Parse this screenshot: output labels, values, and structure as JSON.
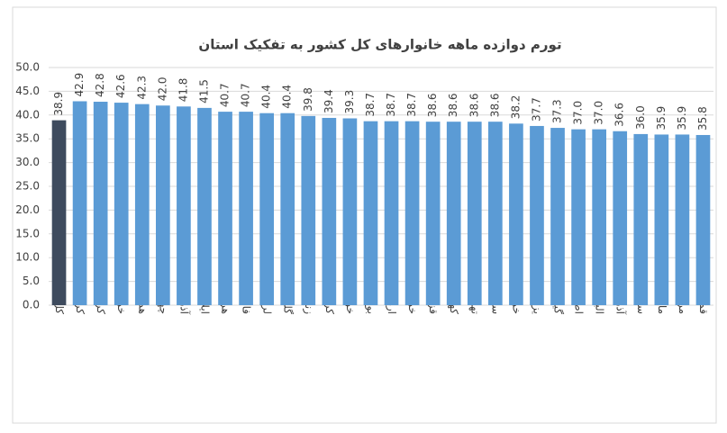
{
  "chart_data": {
    "type": "bar",
    "title": "تورم دوازده ماهه خانوارهای کل کشور به تفکیک استان",
    "categories": [
      "کل کشور",
      "کرمانشاه",
      "کردستان",
      "خراسان شمالی",
      "همدان",
      "چهارمحال وبختیاری",
      "آذربایجان شرقی",
      "ایلام",
      "هرمزگان",
      "فارس",
      "لرستان",
      "گلستان",
      "زنجان",
      "کرمان",
      "خوزستان",
      "بوشهر",
      "اردبیل",
      "خراسان رضوی",
      "قزوین",
      "کهگیلویه وبویراحمد",
      "تهران",
      "سیستان وبلوچستان",
      "خراسان جنوبی",
      "یزد",
      "گیلان",
      "اصفهان",
      "البرز",
      "آذربایجان غربی",
      "سمنان",
      "مازندران",
      "مرکزی",
      "قم"
    ],
    "values": [
      38.9,
      42.9,
      42.8,
      42.6,
      42.3,
      42.0,
      41.8,
      41.5,
      40.7,
      40.7,
      40.4,
      40.4,
      39.8,
      39.4,
      39.3,
      38.7,
      38.7,
      38.7,
      38.6,
      38.6,
      38.6,
      38.6,
      38.2,
      37.7,
      37.3,
      37.0,
      37.0,
      36.6,
      36.0,
      35.9,
      35.9,
      35.8
    ],
    "value_labels": [
      "38.9",
      "42.9",
      "42.8",
      "42.6",
      "42.3",
      "42.0",
      "41.8",
      "41.5",
      "40.7",
      "40.7",
      "40.4",
      "40.4",
      "39.8",
      "39.4",
      "39.3",
      "38.7",
      "38.7",
      "38.7",
      "38.6",
      "38.6",
      "38.6",
      "38.6",
      "38.2",
      "37.7",
      "37.3",
      "37.0",
      "37.0",
      "36.6",
      "36.0",
      "35.9",
      "35.9",
      "35.8"
    ],
    "colors": [
      "#3e4b5e",
      "#5b9bd5",
      "#5b9bd5",
      "#5b9bd5",
      "#5b9bd5",
      "#5b9bd5",
      "#5b9bd5",
      "#5b9bd5",
      "#5b9bd5",
      "#5b9bd5",
      "#5b9bd5",
      "#5b9bd5",
      "#5b9bd5",
      "#5b9bd5",
      "#5b9bd5",
      "#5b9bd5",
      "#5b9bd5",
      "#5b9bd5",
      "#5b9bd5",
      "#5b9bd5",
      "#5b9bd5",
      "#5b9bd5",
      "#5b9bd5",
      "#5b9bd5",
      "#5b9bd5",
      "#5b9bd5",
      "#5b9bd5",
      "#5b9bd5",
      "#5b9bd5",
      "#5b9bd5",
      "#5b9bd5",
      "#5b9bd5"
    ],
    "ylim": [
      0,
      50
    ],
    "yticks": [
      {
        "value": 0,
        "label": "0.0"
      },
      {
        "value": 5,
        "label": "5.0"
      },
      {
        "value": 10,
        "label": "10.0"
      },
      {
        "value": 15,
        "label": "15.0"
      },
      {
        "value": 20,
        "label": "20.0"
      },
      {
        "value": 25,
        "label": "25.0"
      },
      {
        "value": 30,
        "label": "30.0"
      },
      {
        "value": 35,
        "label": "35.0"
      },
      {
        "value": 40,
        "label": "40.0"
      },
      {
        "value": 45,
        "label": "45.0"
      },
      {
        "value": 50,
        "label": "50.0"
      }
    ],
    "grid": true
  }
}
